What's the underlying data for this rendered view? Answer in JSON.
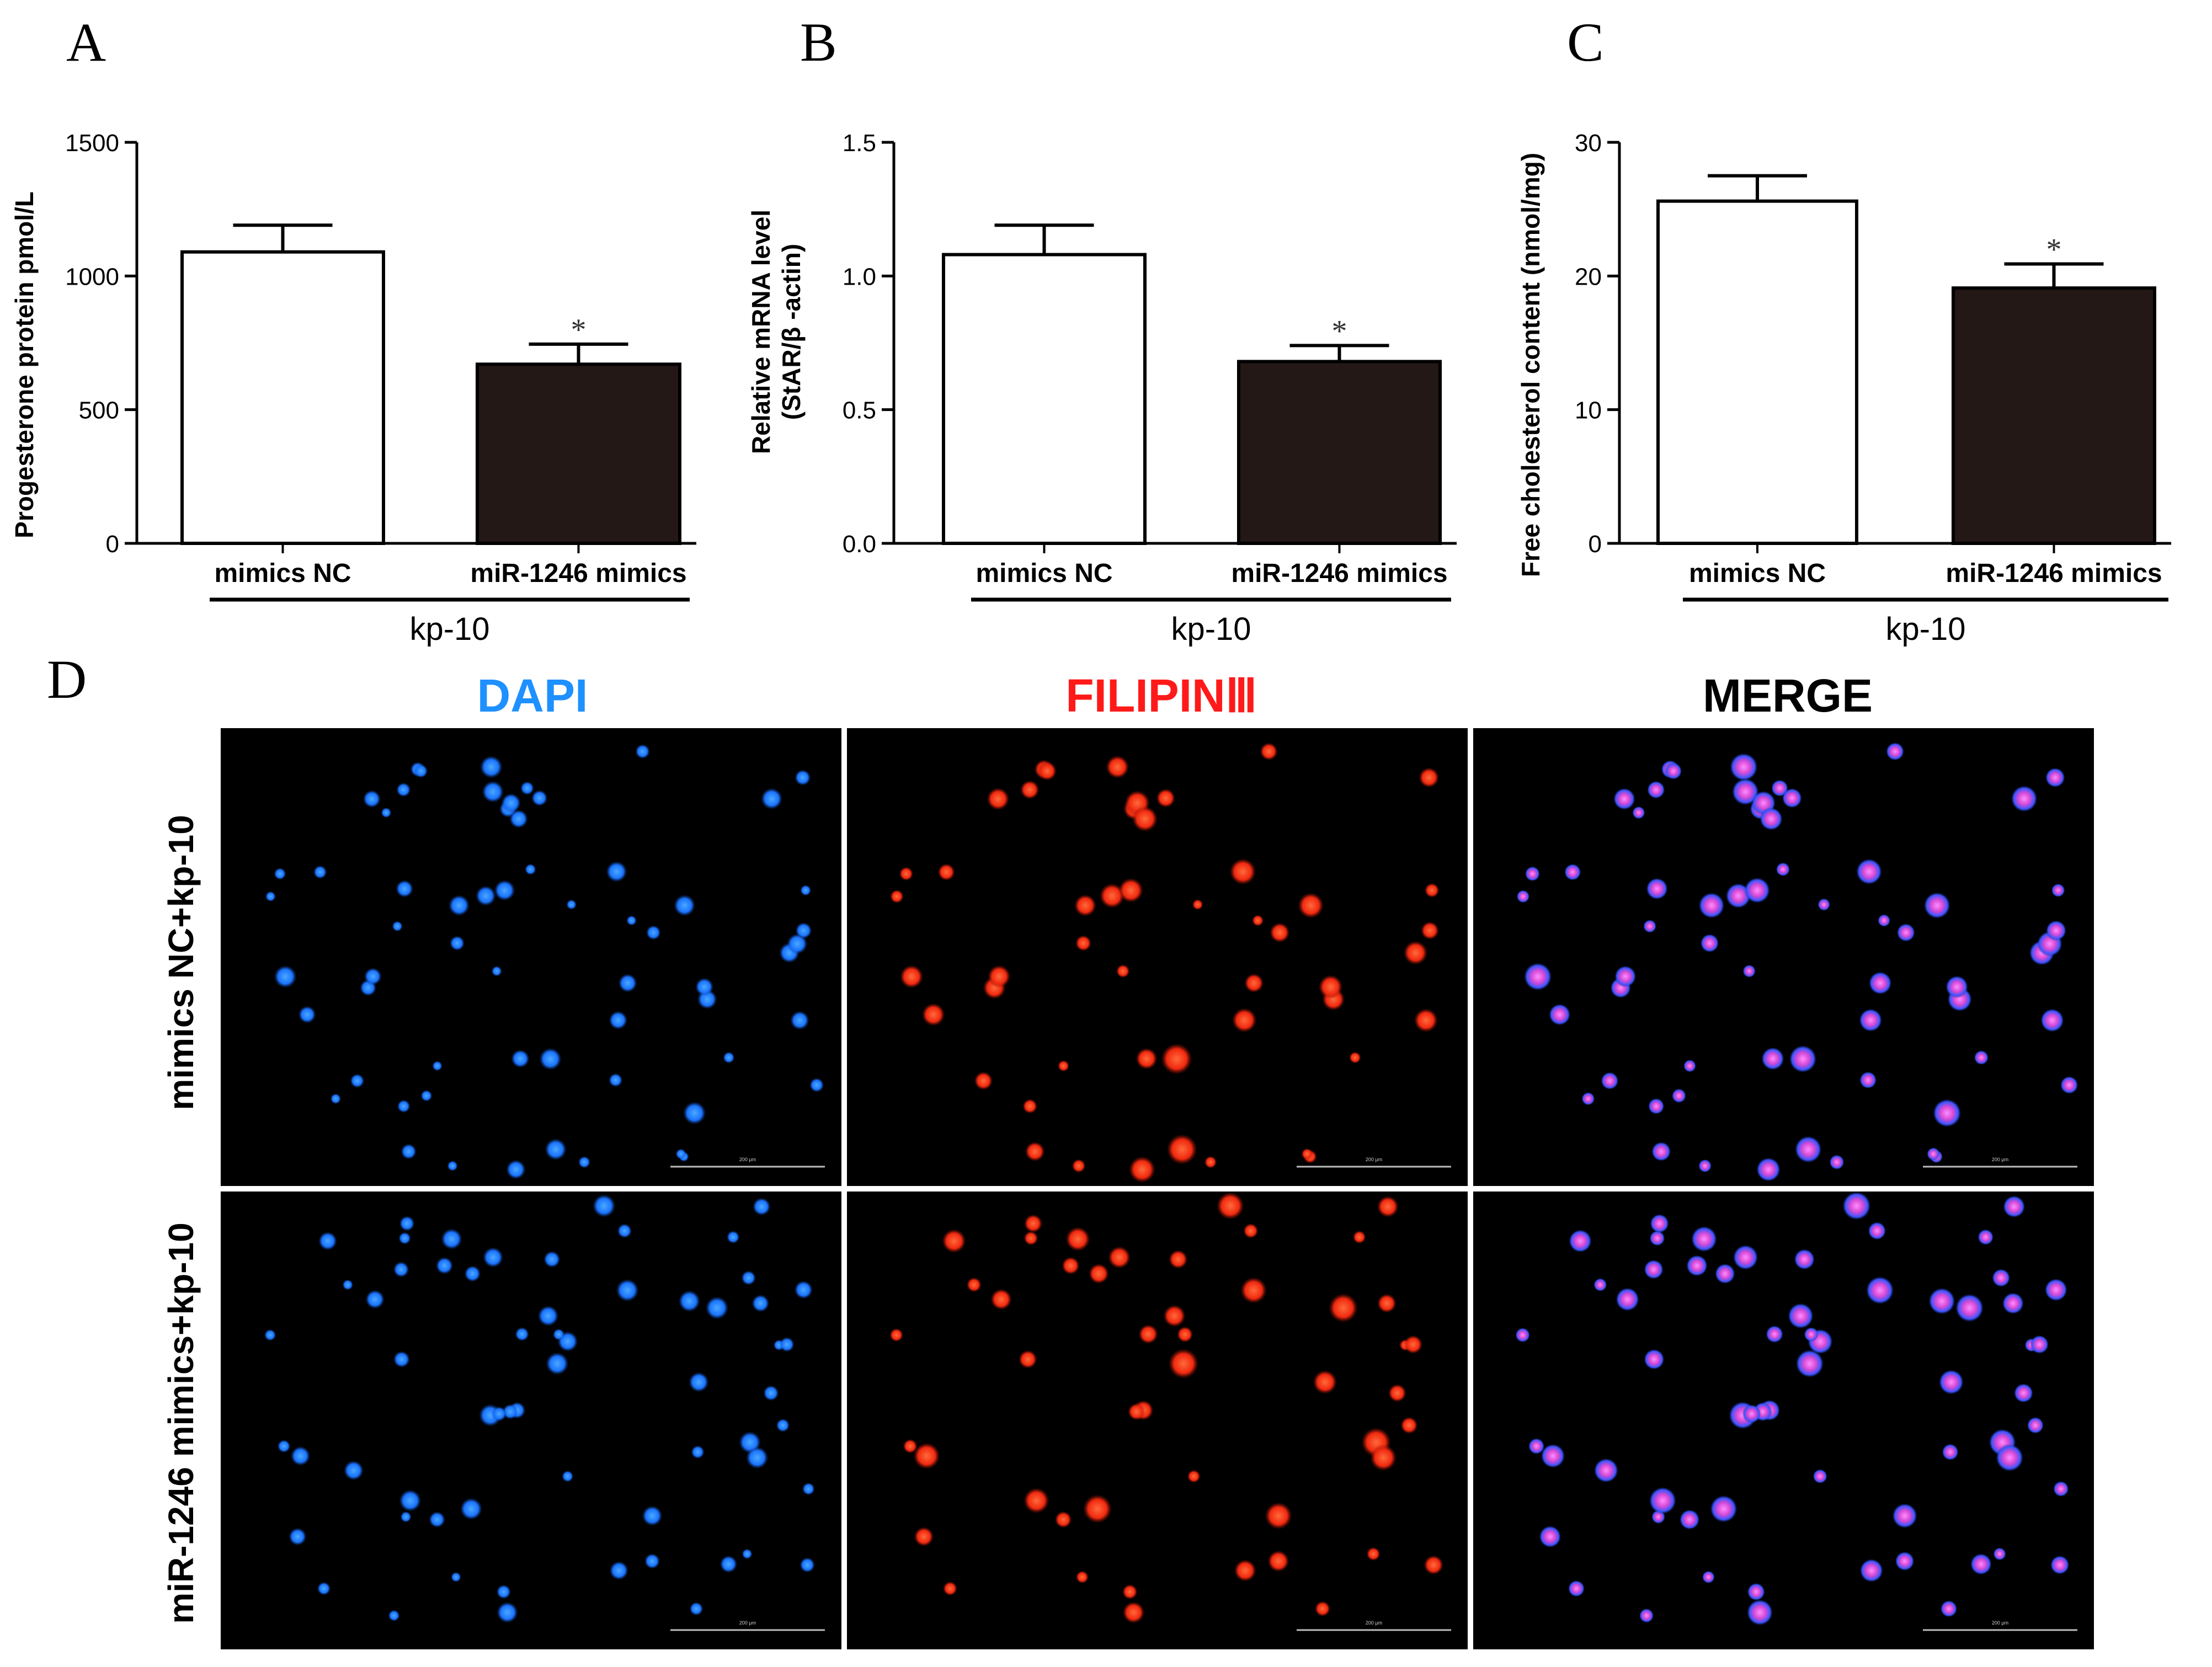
{
  "chart_data": [
    {
      "type": "bar",
      "panel": "A",
      "categories": [
        "mimics NC",
        "miR-1246 mimics"
      ],
      "values": [
        1090,
        670
      ],
      "errors": [
        100,
        75
      ],
      "significance": [
        "",
        "*"
      ],
      "bar_colors": [
        "#ffffff",
        "#231815"
      ],
      "group_label": "kp-10",
      "ylabel": "Progesterone protein pmol/L",
      "ylabel2": "",
      "yticks": [
        "0",
        "500",
        "1000",
        "1500"
      ],
      "ylim": [
        0,
        1500
      ]
    },
    {
      "type": "bar",
      "panel": "B",
      "categories": [
        "mimics NC",
        "miR-1246 mimics"
      ],
      "values": [
        1.08,
        0.68
      ],
      "errors": [
        0.11,
        0.06
      ],
      "significance": [
        "",
        "*"
      ],
      "bar_colors": [
        "#ffffff",
        "#231815"
      ],
      "group_label": "kp-10",
      "ylabel": "Relative mRNA level",
      "ylabel2": "(StAR/β -actin)",
      "yticks": [
        "0.0",
        "0.5",
        "1.0",
        "1.5"
      ],
      "ylim": [
        0,
        1.5
      ]
    },
    {
      "type": "bar",
      "panel": "C",
      "categories": [
        "mimics NC",
        "miR-1246 mimics"
      ],
      "values": [
        25.6,
        19.1
      ],
      "errors": [
        1.9,
        1.8
      ],
      "significance": [
        "",
        "*"
      ],
      "bar_colors": [
        "#ffffff",
        "#231815"
      ],
      "group_label": "kp-10",
      "ylabel": "Free cholesterol content (nmol/mg)",
      "ylabel2": "",
      "yticks": [
        "0",
        "10",
        "20",
        "30"
      ],
      "ylim": [
        0,
        30
      ]
    }
  ],
  "microscopy": {
    "panel": "D",
    "columns": [
      {
        "label": "DAPI",
        "color": "#1e90ff"
      },
      {
        "label": "FILIPINⅢ",
        "color": "#ff1a1a"
      },
      {
        "label": "MERGE",
        "color": "#000000"
      }
    ],
    "rows": [
      "mimics NC+kp-10",
      "miR-1246 mimics+kp-10"
    ],
    "scale_bar_label": "200 μm"
  }
}
